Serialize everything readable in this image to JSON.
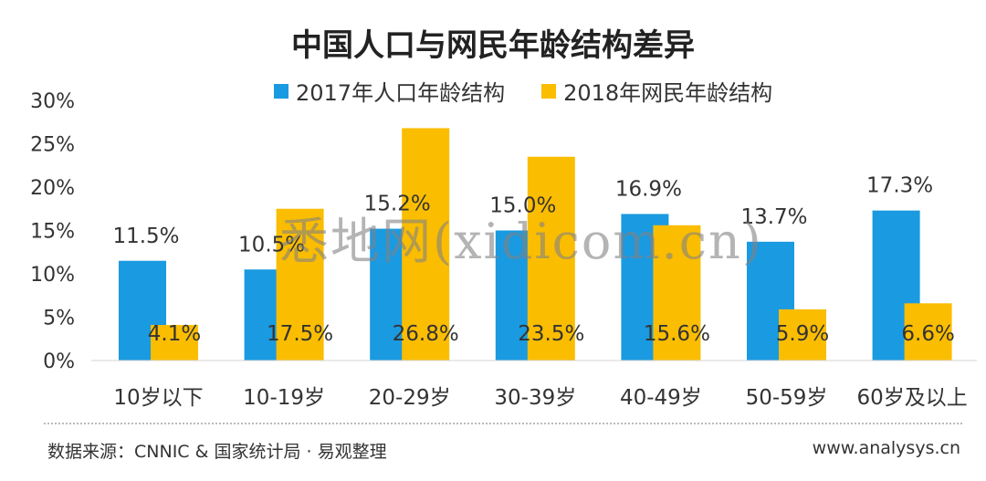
{
  "chart_data": {
    "type": "bar",
    "title": "中国人口与网民年龄结构差异",
    "categories": [
      "10岁以下",
      "10-19岁",
      "20-29岁",
      "30-39岁",
      "40-49岁",
      "50-59岁",
      "60岁及以上"
    ],
    "series": [
      {
        "name": "2017年人口年龄结构",
        "values": [
          11.5,
          10.5,
          15.2,
          15.0,
          16.9,
          13.7,
          17.3
        ],
        "labels": [
          "11.5%",
          "10.5%",
          "15.2%",
          "15.0%",
          "16.9%",
          "13.7%",
          "17.3%"
        ],
        "color": "#1a9ae0"
      },
      {
        "name": "2018年网民年龄结构",
        "values": [
          4.1,
          17.5,
          26.8,
          23.5,
          15.6,
          5.9,
          6.6
        ],
        "labels": [
          "4.1%",
          "17.5%",
          "26.8%",
          "23.5%",
          "15.6%",
          "5.9%",
          "6.6%"
        ],
        "color": "#fbbd00"
      }
    ],
    "yticks": [
      "0%",
      "5%",
      "10%",
      "15%",
      "20%",
      "25%",
      "30%"
    ],
    "ylim": [
      0,
      30
    ],
    "xlabel": "",
    "ylabel": "",
    "legend": "top-center",
    "grid": false
  },
  "footer": {
    "source": "数据来源：CNNIC & 国家统计局 · 易观整理",
    "site": "www.analysys.cn"
  },
  "watermark": "悉地网(xidicom.cn)"
}
